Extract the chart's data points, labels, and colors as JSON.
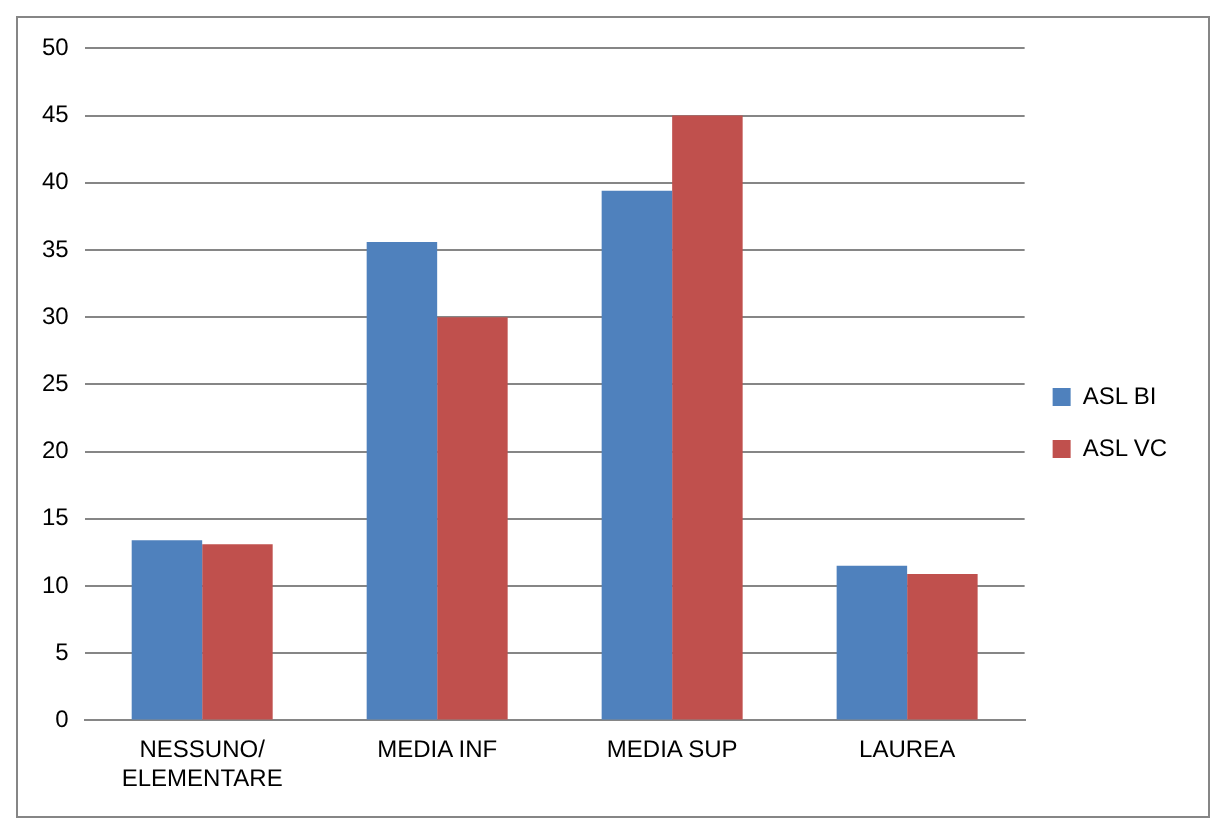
{
  "chart_data": {
    "type": "bar",
    "categories": [
      "NESSUNO/ELEMENTARE",
      "MEDIA INF",
      "MEDIA SUP",
      "LAUREA"
    ],
    "series": [
      {
        "name": "ASL BI",
        "color": "#4f81bd",
        "values": [
          13.4,
          35.6,
          39.4,
          11.5
        ]
      },
      {
        "name": "ASL VC",
        "color": "#c0504d",
        "values": [
          13.1,
          30,
          45,
          10.9
        ]
      }
    ],
    "ylim": [
      0,
      50
    ],
    "yticks": [
      0,
      5,
      10,
      15,
      20,
      25,
      30,
      35,
      40,
      45,
      50
    ],
    "grid": "y",
    "legend": "right"
  }
}
